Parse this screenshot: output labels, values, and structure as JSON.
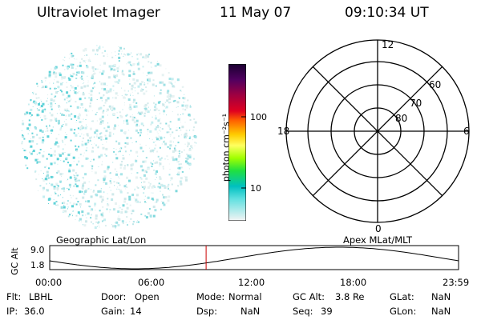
{
  "header": {
    "instrument": "Ultraviolet Imager",
    "date": "11 May 07",
    "time": "09:10:34 UT"
  },
  "colorbar": {
    "label": "photon cm⁻²s⁻¹",
    "ticks": [
      "100",
      "10"
    ]
  },
  "polar": {
    "mlt_labels": {
      "top": "12",
      "left": "18",
      "right": "6",
      "bottom": "0"
    },
    "lat_labels": [
      "60",
      "70",
      "80"
    ]
  },
  "strip": {
    "left_caption": "Geographic Lat/Lon",
    "right_caption": "Apex MLat/MLT",
    "ylabel": "GC Alt",
    "y_ticks": [
      "9.0",
      "1.8"
    ],
    "x_ticks": [
      "00:00",
      "06:00",
      "12:00",
      "18:00",
      "23:59"
    ],
    "current_time_hours": 9.18
  },
  "status": {
    "flt_label": "Flt:",
    "flt_value": "LBHL",
    "ip_label": "IP:",
    "ip_value": "36.0",
    "door_label": "Door:",
    "door_value": "Open",
    "gain_label": "Gain:",
    "gain_value": "14",
    "mode_label": "Mode:",
    "mode_value": "Normal",
    "dsp_label": "Dsp:",
    "dsp_value": "NaN",
    "gcalt_label": "GC Alt:",
    "gcalt_value": "3.8 Re",
    "seq_label": "Seq:",
    "seq_value": "39",
    "glat_label": "GLat:",
    "glat_value": "NaN",
    "glon_label": "GLon:",
    "glon_value": "NaN"
  }
}
